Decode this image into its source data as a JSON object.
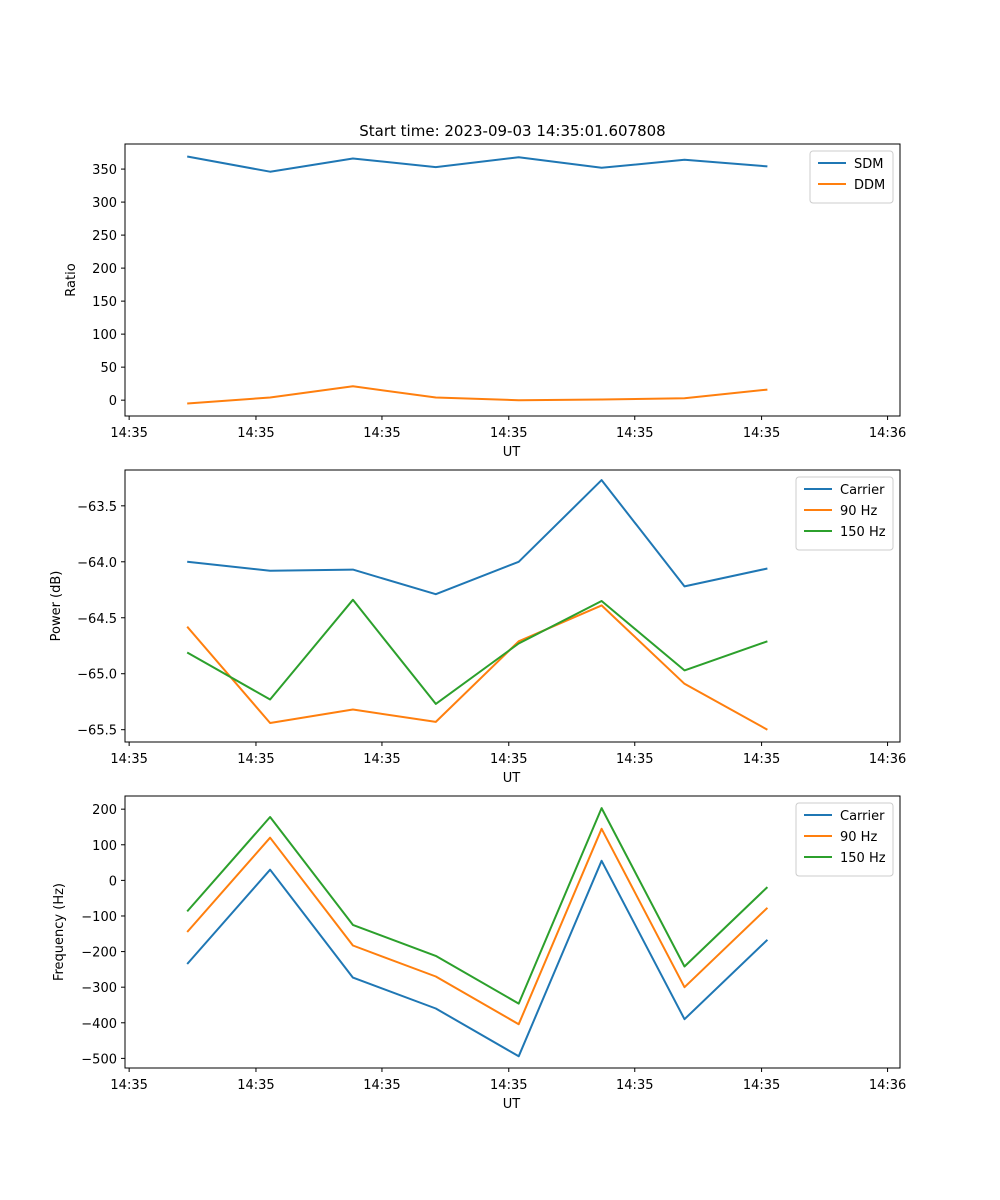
{
  "chart_data": [
    {
      "type": "line",
      "title": "Start time: 2023-09-03 14:35:01.607808",
      "xlabel": "UT",
      "ylabel": "Ratio",
      "x": [
        0,
        1,
        2,
        3,
        4,
        5,
        6,
        7
      ],
      "xlim": [
        -0.75,
        8.6
      ],
      "xticks": [
        -0.7,
        0.83,
        2.35,
        3.88,
        5.4,
        6.93,
        8.45
      ],
      "xtick_labels": [
        "14:35",
        "14:35",
        "14:35",
        "14:35",
        "14:35",
        "14:35",
        "14:36"
      ],
      "ylim": [
        -24,
        388
      ],
      "yticks": [
        0,
        50,
        100,
        150,
        200,
        250,
        300,
        350
      ],
      "ytick_labels": [
        "0",
        "50",
        "100",
        "150",
        "200",
        "250",
        "300",
        "350"
      ],
      "legend_position": "top-right",
      "series": [
        {
          "name": "SDM",
          "color": "#1f77b4",
          "values": [
            369,
            346,
            366,
            353,
            368,
            352,
            364,
            354
          ]
        },
        {
          "name": "DDM",
          "color": "#ff7f0e",
          "values": [
            -5,
            4,
            21,
            4,
            0,
            1,
            3,
            16
          ]
        }
      ]
    },
    {
      "type": "line",
      "title": "",
      "xlabel": "UT",
      "ylabel": "Power (dB)",
      "x": [
        0,
        1,
        2,
        3,
        4,
        5,
        6,
        7
      ],
      "xlim": [
        -0.75,
        8.6
      ],
      "xticks": [
        -0.7,
        0.83,
        2.35,
        3.88,
        5.4,
        6.93,
        8.45
      ],
      "xtick_labels": [
        "14:35",
        "14:35",
        "14:35",
        "14:35",
        "14:35",
        "14:35",
        "14:36"
      ],
      "ylim": [
        -65.61,
        -63.18
      ],
      "yticks": [
        -65.5,
        -65.0,
        -64.5,
        -64.0,
        -63.5
      ],
      "ytick_labels": [
        "−65.5",
        "−65.0",
        "−64.5",
        "−64.0",
        "−63.5"
      ],
      "legend_position": "top-right",
      "series": [
        {
          "name": "Carrier",
          "color": "#1f77b4",
          "values": [
            -64.0,
            -64.08,
            -64.07,
            -64.29,
            -64.0,
            -63.27,
            -64.22,
            -64.06
          ]
        },
        {
          "name": "90 Hz",
          "color": "#ff7f0e",
          "values": [
            -64.58,
            -65.44,
            -65.32,
            -65.43,
            -64.71,
            -64.39,
            -65.09,
            -65.5
          ]
        },
        {
          "name": "150 Hz",
          "color": "#2ca02c",
          "values": [
            -64.81,
            -65.23,
            -64.34,
            -65.27,
            -64.73,
            -64.35,
            -64.97,
            -64.71
          ]
        }
      ]
    },
    {
      "type": "line",
      "title": "",
      "xlabel": "UT",
      "ylabel": "Frequency (Hz)",
      "x": [
        0,
        1,
        2,
        3,
        4,
        5,
        6,
        7
      ],
      "xlim": [
        -0.75,
        8.6
      ],
      "xticks": [
        -0.7,
        0.83,
        2.35,
        3.88,
        5.4,
        6.93,
        8.45
      ],
      "xtick_labels": [
        "14:35",
        "14:35",
        "14:35",
        "14:35",
        "14:35",
        "14:35",
        "14:36"
      ],
      "ylim": [
        -527,
        237
      ],
      "yticks": [
        -500,
        -400,
        -300,
        -200,
        -100,
        0,
        100,
        200
      ],
      "ytick_labels": [
        "−500",
        "−400",
        "−300",
        "−200",
        "−100",
        "0",
        "100",
        "200"
      ],
      "legend_position": "top-right",
      "series": [
        {
          "name": "Carrier",
          "color": "#1f77b4",
          "values": [
            -235,
            30,
            -273,
            -360,
            -494,
            55,
            -390,
            -167
          ]
        },
        {
          "name": "90 Hz",
          "color": "#ff7f0e",
          "values": [
            -145,
            120,
            -183,
            -270,
            -404,
            145,
            -300,
            -77
          ]
        },
        {
          "name": "150 Hz",
          "color": "#2ca02c",
          "values": [
            -87,
            178,
            -125,
            -212,
            -346,
            203,
            -242,
            -19
          ]
        }
      ]
    }
  ]
}
